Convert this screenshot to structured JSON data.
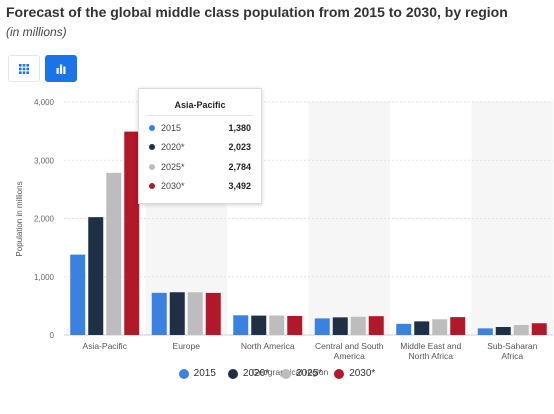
{
  "header": {
    "title": "Forecast of the global middle class population from 2015 to 2030, by region",
    "subtitle": "(in millions)"
  },
  "toolbar": {
    "table_icon": "grid-icon",
    "chart_icon": "bar-chart-icon",
    "accent": "#1a73e8"
  },
  "chart_data": {
    "type": "bar",
    "title": "",
    "xlabel": "Geographical region",
    "ylabel": "Population in millions",
    "ylim": [
      0,
      4000
    ],
    "yticks": [
      0,
      1000,
      2000,
      3000,
      4000
    ],
    "ytick_labels": [
      "0",
      "1,000",
      "2,000",
      "3,000",
      "4,000"
    ],
    "grid": true,
    "legend_position": "bottom-center",
    "categories": [
      [
        "Asia-Pacific"
      ],
      [
        "Europe"
      ],
      [
        "North America"
      ],
      [
        "Central and South",
        "America"
      ],
      [
        "Middle East and",
        "North Africa"
      ],
      [
        "Sub-Saharan",
        "Africa"
      ]
    ],
    "series": [
      {
        "name": "2015",
        "color": "#3b82e0",
        "values": [
          1380,
          724,
          338,
          285,
          192,
          114
        ]
      },
      {
        "name": "2020*",
        "color": "#1f2f45",
        "values": [
          2023,
          734,
          333,
          303,
          234,
          137
        ]
      },
      {
        "name": "2025*",
        "color": "#bdbdbd",
        "values": [
          2784,
          733,
          335,
          313,
          270,
          172
        ]
      },
      {
        "name": "2030*",
        "color": "#b1182a",
        "values": [
          3492,
          723,
          327,
          323,
          307,
          202
        ]
      }
    ]
  },
  "tooltip": {
    "title": "Asia-Pacific",
    "rows": [
      {
        "label": "2015",
        "value": "1,380",
        "color": "#3b82e0"
      },
      {
        "label": "2020*",
        "value": "2,023",
        "color": "#1f2f45"
      },
      {
        "label": "2025*",
        "value": "2,784",
        "color": "#bdbdbd"
      },
      {
        "label": "2030*",
        "value": "3,492",
        "color": "#b1182a"
      }
    ]
  },
  "legend": {
    "items": [
      {
        "label": "2015",
        "color": "#3b82e0"
      },
      {
        "label": "2020*",
        "color": "#1f2f45"
      },
      {
        "label": "2025*",
        "color": "#bdbdbd"
      },
      {
        "label": "2030*",
        "color": "#b1182a"
      }
    ]
  }
}
